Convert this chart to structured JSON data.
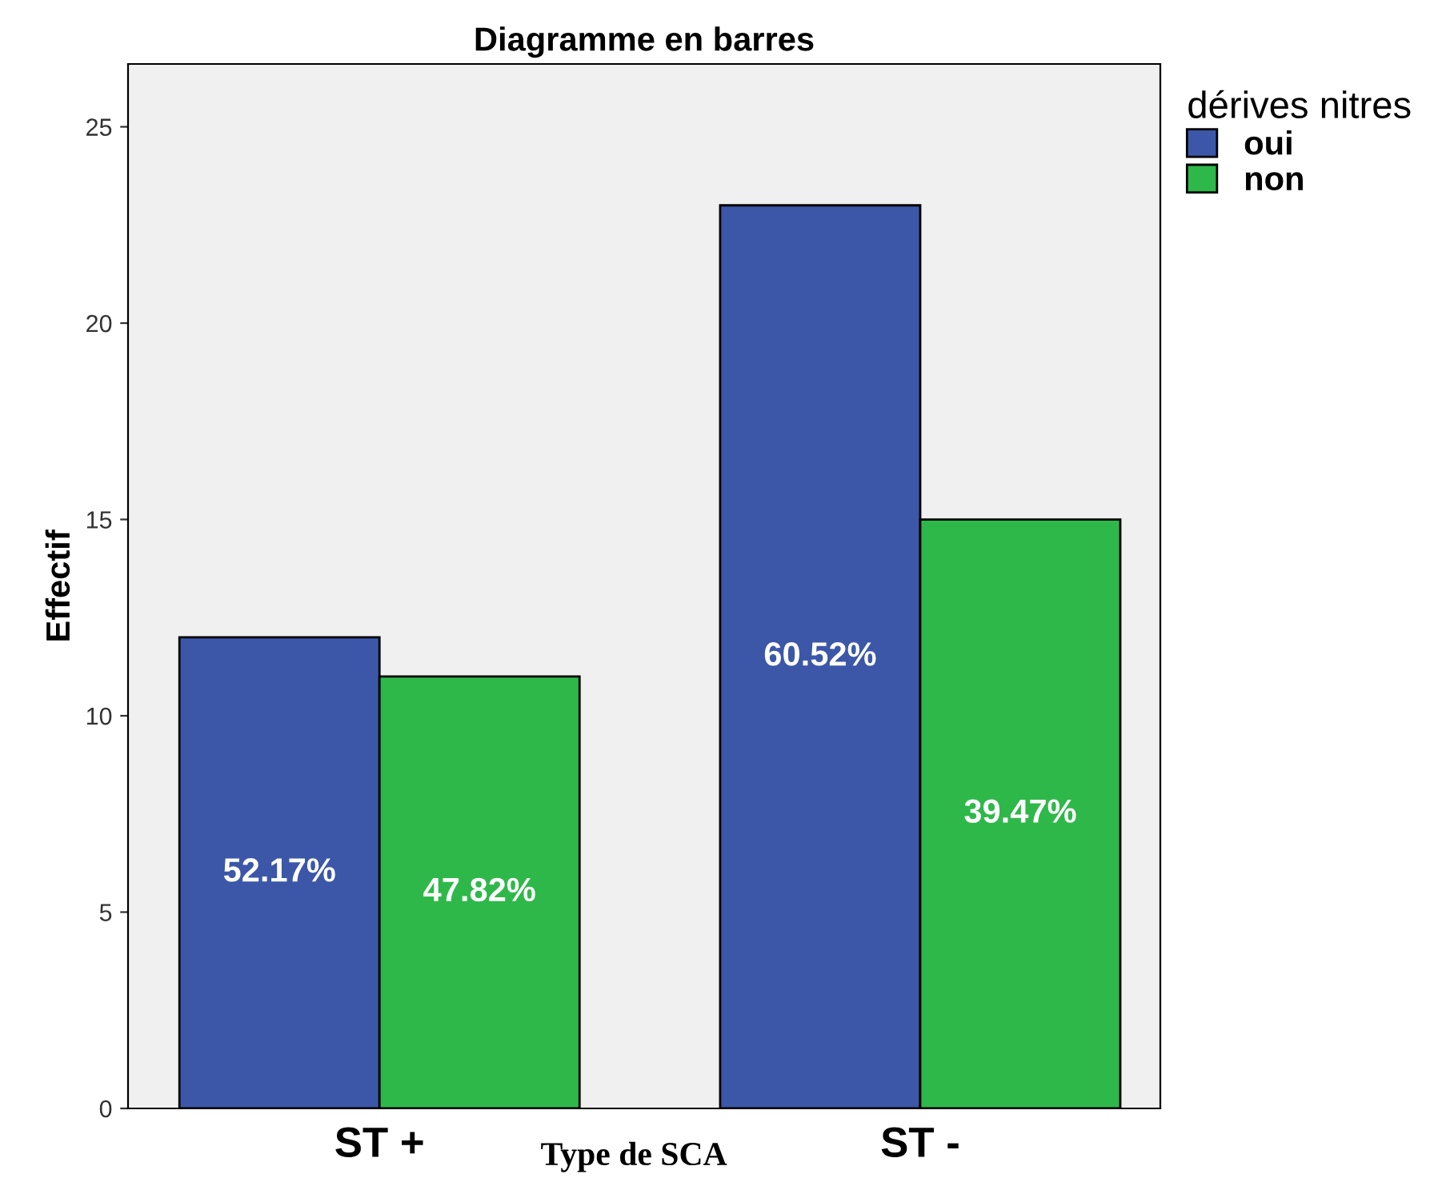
{
  "chart_data": {
    "type": "bar",
    "title": "Diagramme en barres",
    "xlabel": "Type de SCA",
    "ylabel": "Effectif",
    "legend_title": "dérives nitres",
    "categories": [
      "ST +",
      "ST -"
    ],
    "series": [
      {
        "name": "oui",
        "color": "#3c57a8",
        "values": [
          12,
          23
        ]
      },
      {
        "name": "non",
        "color": "#2fb84a",
        "values": [
          11,
          15
        ]
      }
    ],
    "annotations": [
      "52.17%",
      "60.52%",
      "47.82%",
      "39.47%"
    ],
    "ylim": [
      0,
      26.6
    ],
    "yticks": [
      0,
      5,
      10,
      15,
      20,
      25
    ],
    "grid": false,
    "legend": "top right"
  }
}
